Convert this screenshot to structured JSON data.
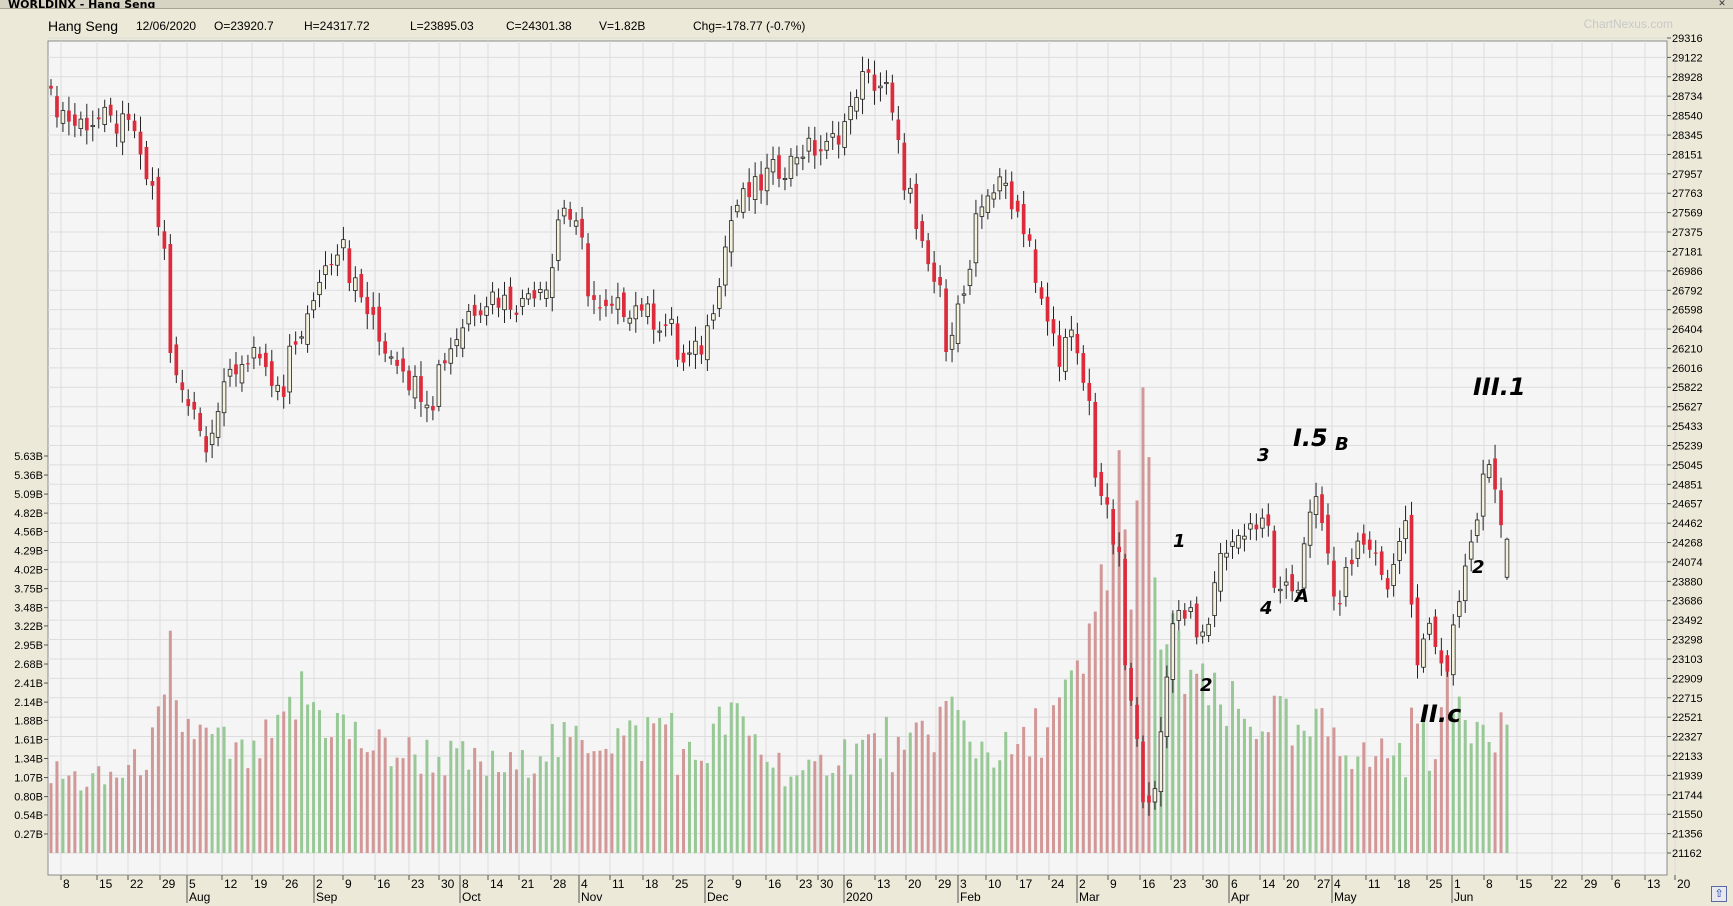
{
  "window": {
    "title": "WORLDINX - Hang Seng"
  },
  "header": {
    "symbol": "Hang Seng",
    "date": "12/06/2020",
    "open": "O=23920.7",
    "high": "H=24317.72",
    "low": "L=23895.03",
    "close": "C=24301.38",
    "volume": "V=1.82B",
    "change": "Chg=-178.77 (-0.7%)",
    "brand": "ChartNexus.com"
  },
  "colors": {
    "up_candle": "#f4f1dc",
    "down_candle": "#dc2c3c",
    "up_volume": "#98c896",
    "down_volume": "#d29898",
    "grid": "#dddddd",
    "background": "#f5f5f5"
  },
  "chart_data": {
    "type": "candlestick",
    "price_axis": {
      "position": "right",
      "ticks": [
        "29316",
        "29122",
        "28928",
        "28734",
        "28540",
        "28345",
        "28151",
        "27957",
        "27763",
        "27569",
        "27375",
        "27181",
        "26986",
        "26792",
        "26598",
        "26404",
        "26210",
        "26016",
        "25822",
        "25627",
        "25433",
        "25239",
        "25045",
        "24851",
        "24657",
        "24462",
        "24268",
        "24074",
        "23880",
        "23686",
        "23492",
        "23298",
        "23103",
        "22909",
        "22715",
        "22521",
        "22327",
        "22133",
        "21939",
        "21744",
        "21550",
        "21356",
        "21162"
      ]
    },
    "volume_axis": {
      "position": "left",
      "ticks": [
        "5.63B",
        "5.36B",
        "5.09B",
        "4.82B",
        "4.56B",
        "4.29B",
        "4.02B",
        "3.75B",
        "3.48B",
        "3.22B",
        "2.95B",
        "2.68B",
        "2.41B",
        "2.14B",
        "1.88B",
        "1.61B",
        "1.34B",
        "1.07B",
        "0.80B",
        "0.54B",
        "0.27B"
      ]
    },
    "x_axis": {
      "day_labels": [
        "8",
        "15",
        "22",
        "29",
        "5",
        "12",
        "19",
        "26",
        "2",
        "9",
        "16",
        "23",
        "30",
        "8",
        "14",
        "21",
        "28",
        "4",
        "11",
        "18",
        "25",
        "2",
        "9",
        "16",
        "23",
        "30",
        "6",
        "13",
        "20",
        "29",
        "3",
        "10",
        "17",
        "24",
        "2",
        "9",
        "16",
        "23",
        "30",
        "6",
        "14",
        "20",
        "27",
        "4",
        "11",
        "18",
        "25",
        "1",
        "8",
        "15",
        "22",
        "29",
        "6",
        "13",
        "20"
      ],
      "month_labels": [
        {
          "label": "Aug",
          "day_index": 4
        },
        {
          "label": "Sep",
          "day_index": 8
        },
        {
          "label": "Oct",
          "day_index": 13
        },
        {
          "label": "Nov",
          "day_index": 17
        },
        {
          "label": "Dec",
          "day_index": 21
        },
        {
          "label": "2020",
          "day_index": 26
        },
        {
          "label": "Feb",
          "day_index": 30
        },
        {
          "label": "Mar",
          "day_index": 34
        },
        {
          "label": "Apr",
          "day_index": 39
        },
        {
          "label": "May",
          "day_index": 43
        },
        {
          "label": "Jun",
          "day_index": 47
        }
      ]
    },
    "anchors": [
      {
        "date": "2019-07-08",
        "close": 28700,
        "volume": 1.1
      },
      {
        "date": "2019-07-12",
        "close": 28450,
        "volume": 1.05
      },
      {
        "date": "2019-07-19",
        "close": 28500,
        "volume": 1.0
      },
      {
        "date": "2019-07-26",
        "close": 28400,
        "volume": 1.2
      },
      {
        "date": "2019-07-31",
        "close": 27800,
        "volume": 1.5
      },
      {
        "date": "2019-08-05",
        "close": 26150,
        "volume": 2.6
      },
      {
        "date": "2019-08-06",
        "close": 25900,
        "volume": 1.9
      },
      {
        "date": "2019-08-13",
        "close": 25300,
        "volume": 1.6
      },
      {
        "date": "2019-08-16",
        "close": 25750,
        "volume": 1.5
      },
      {
        "date": "2019-08-23",
        "close": 26200,
        "volume": 1.3
      },
      {
        "date": "2019-08-30",
        "close": 25700,
        "volume": 1.7
      },
      {
        "date": "2019-09-04",
        "close": 26400,
        "volume": 2.2
      },
      {
        "date": "2019-09-13",
        "close": 27350,
        "volume": 1.8
      },
      {
        "date": "2019-09-20",
        "close": 26450,
        "volume": 1.5
      },
      {
        "date": "2019-09-30",
        "close": 25900,
        "volume": 1.4
      },
      {
        "date": "2019-10-04",
        "close": 25700,
        "volume": 1.4
      },
      {
        "date": "2019-10-11",
        "close": 26450,
        "volume": 1.3
      },
      {
        "date": "2019-10-18",
        "close": 26750,
        "volume": 1.2
      },
      {
        "date": "2019-10-25",
        "close": 26650,
        "volume": 1.2
      },
      {
        "date": "2019-10-31",
        "close": 26900,
        "volume": 1.6
      },
      {
        "date": "2019-11-05",
        "close": 27650,
        "volume": 1.5
      },
      {
        "date": "2019-11-13",
        "close": 26550,
        "volume": 1.7
      },
      {
        "date": "2019-11-22",
        "close": 26650,
        "volume": 1.6
      },
      {
        "date": "2019-11-29",
        "close": 26400,
        "volume": 1.9
      },
      {
        "date": "2019-12-03",
        "close": 26050,
        "volume": 1.3
      },
      {
        "date": "2019-12-09",
        "close": 26400,
        "volume": 1.5
      },
      {
        "date": "2019-12-13",
        "close": 27500,
        "volume": 2.0
      },
      {
        "date": "2019-12-20",
        "close": 27850,
        "volume": 1.5
      },
      {
        "date": "2019-12-31",
        "close": 28200,
        "volume": 1.0
      },
      {
        "date": "2020-01-06",
        "close": 28200,
        "volume": 1.4
      },
      {
        "date": "2020-01-14",
        "close": 28900,
        "volume": 1.5
      },
      {
        "date": "2020-01-20",
        "close": 28800,
        "volume": 1.6
      },
      {
        "date": "2020-01-23",
        "close": 27900,
        "volume": 1.3
      },
      {
        "date": "2020-02-03",
        "close": 26300,
        "volume": 2.1
      },
      {
        "date": "2020-02-07",
        "close": 26900,
        "volume": 1.6
      },
      {
        "date": "2020-02-12",
        "close": 27800,
        "volume": 1.5
      },
      {
        "date": "2020-02-17",
        "close": 27850,
        "volume": 1.4
      },
      {
        "date": "2020-02-21",
        "close": 27300,
        "volume": 1.5
      },
      {
        "date": "2020-02-28",
        "close": 26150,
        "volume": 2.0
      },
      {
        "date": "2020-03-03",
        "close": 26300,
        "volume": 2.2
      },
      {
        "date": "2020-03-09",
        "close": 25000,
        "volume": 3.3
      },
      {
        "date": "2020-03-13",
        "close": 24050,
        "volume": 5.2
      },
      {
        "date": "2020-03-16",
        "close": 23050,
        "volume": 4.0
      },
      {
        "date": "2020-03-19",
        "close": 21800,
        "volume": 5.5
      },
      {
        "date": "2020-03-23",
        "close": 21700,
        "volume": 3.4
      },
      {
        "date": "2020-03-26",
        "close": 23550,
        "volume": 2.8
      },
      {
        "date": "2020-03-31",
        "close": 23600,
        "volume": 2.6
      },
      {
        "date": "2020-04-02",
        "close": 23250,
        "volume": 2.2
      },
      {
        "date": "2020-04-08",
        "close": 24250,
        "volume": 2.0
      },
      {
        "date": "2020-04-14",
        "close": 24450,
        "volume": 1.8
      },
      {
        "date": "2020-04-17",
        "close": 24400,
        "volume": 2.0
      },
      {
        "date": "2020-04-21",
        "close": 23700,
        "volume": 1.9
      },
      {
        "date": "2020-04-24",
        "close": 23850,
        "volume": 1.5
      },
      {
        "date": "2020-04-29",
        "close": 24650,
        "volume": 1.7
      },
      {
        "date": "2020-05-04",
        "close": 23600,
        "volume": 1.8
      },
      {
        "date": "2020-05-08",
        "close": 24250,
        "volume": 1.4
      },
      {
        "date": "2020-05-12",
        "close": 24250,
        "volume": 1.3
      },
      {
        "date": "2020-05-15",
        "close": 23800,
        "volume": 1.5
      },
      {
        "date": "2020-05-20",
        "close": 24400,
        "volume": 1.4
      },
      {
        "date": "2020-05-22",
        "close": 22950,
        "volume": 2.0
      },
      {
        "date": "2020-05-26",
        "close": 23400,
        "volume": 1.5
      },
      {
        "date": "2020-05-29",
        "close": 22950,
        "volume": 2.1
      },
      {
        "date": "2020-06-02",
        "close": 23700,
        "volume": 2.1
      },
      {
        "date": "2020-06-04",
        "close": 24300,
        "volume": 2.0
      },
      {
        "date": "2020-06-09",
        "close": 25050,
        "volume": 2.0
      },
      {
        "date": "2020-06-10",
        "close": 24900,
        "volume": 1.9
      },
      {
        "date": "2020-06-11",
        "close": 24480,
        "volume": 1.85
      },
      {
        "date": "2020-06-12",
        "close": 24301.38,
        "volume": 1.82
      }
    ]
  },
  "annotations": {
    "w1": "1",
    "w2": "2",
    "w3": "3",
    "w4": "4",
    "i5": "I.5",
    "wa": "A",
    "wb": "B",
    "iic": "II.c",
    "iii1": "III.1",
    "w2b": "2"
  }
}
